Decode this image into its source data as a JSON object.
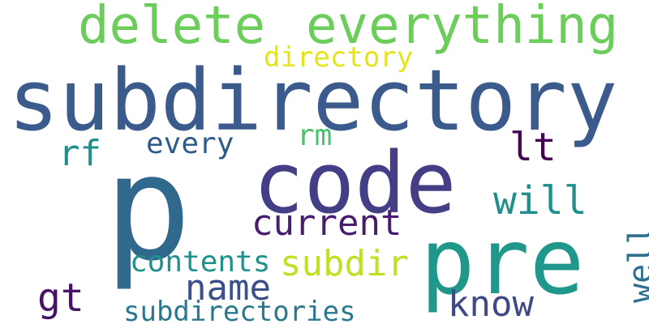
{
  "words": [
    {
      "id": "delete",
      "text": "delete",
      "color": "#6ccd5a"
    },
    {
      "id": "everything",
      "text": "everything",
      "color": "#6ccd5a"
    },
    {
      "id": "subdirectory",
      "text": "subdirectory",
      "color": "#3b5b8d"
    },
    {
      "id": "directory",
      "text": "directory",
      "color": "#e4e418"
    },
    {
      "id": "p",
      "text": "p",
      "color": "#31688e"
    },
    {
      "id": "code",
      "text": "code",
      "color": "#433e85"
    },
    {
      "id": "rm",
      "text": "rm",
      "color": "#4ac16d"
    },
    {
      "id": "every",
      "text": "every",
      "color": "#2f5b8a"
    },
    {
      "id": "rf",
      "text": "rf",
      "color": "#1f8f8b"
    },
    {
      "id": "lt",
      "text": "lt",
      "color": "#440154"
    },
    {
      "id": "will",
      "text": "will",
      "color": "#1f8f8b"
    },
    {
      "id": "current",
      "text": "current",
      "color": "#481d6f"
    },
    {
      "id": "pre",
      "text": "pre",
      "color": "#1f988b"
    },
    {
      "id": "contents",
      "text": "contents",
      "color": "#21918c"
    },
    {
      "id": "subdir",
      "text": "subdir",
      "color": "#c2df23"
    },
    {
      "id": "name",
      "text": "name",
      "color": "#3b4f8b"
    },
    {
      "id": "gt",
      "text": "gt",
      "color": "#471365"
    },
    {
      "id": "know",
      "text": "know",
      "color": "#3e4989"
    },
    {
      "id": "subdirectories",
      "text": "subdirectories",
      "color": "#2a788e"
    },
    {
      "id": "well",
      "text": "well",
      "color": "#2c6f8e",
      "rotated": true
    }
  ]
}
